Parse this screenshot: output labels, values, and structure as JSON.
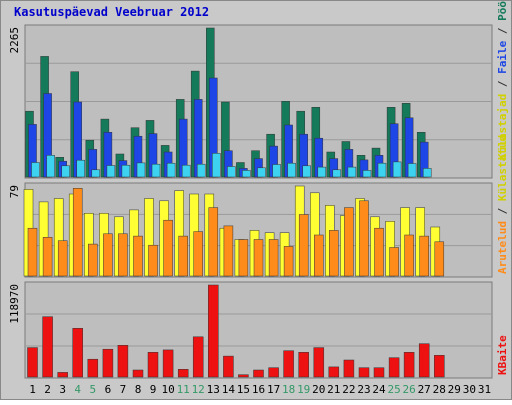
{
  "chart_data": {
    "title": "Kasutuspäevad Veebruar 2012",
    "type": "bar",
    "x": [
      "1",
      "2",
      "3",
      "4",
      "5",
      "6",
      "7",
      "8",
      "9",
      "10",
      "11",
      "12",
      "13",
      "14",
      "15",
      "16",
      "17",
      "18",
      "19",
      "20",
      "21",
      "22",
      "23",
      "24",
      "25",
      "26",
      "27",
      "28",
      "29",
      "30",
      "31"
    ],
    "weekend_days": [
      "4",
      "5",
      "11",
      "12",
      "18",
      "19",
      "25",
      "26"
    ],
    "colors": {
      "title": "#0000cc",
      "weekend_label": "#339966",
      "weekday_label": "#000000",
      "panel_bg": "#bebebe",
      "frame_bg": "#c9c9c9",
      "pageviews": "#147a5a",
      "files": "#1e46e6",
      "visits": "#3cd2f0",
      "visitors": "#ffff33",
      "hits": "#ff8c1a",
      "kbytes": "#ee1111"
    },
    "panels": [
      {
        "max_label": "2265",
        "ymax": 2265,
        "legend": [
          {
            "text": "Külastajad",
            "color": "#d0d000"
          },
          {
            "text": " / ",
            "color": "#333333"
          },
          {
            "text": "Faile",
            "color": "#1e46e6"
          },
          {
            "text": " / ",
            "color": "#333333"
          },
          {
            "text": "Pöördumisi",
            "color": "#147a5a"
          }
        ],
        "series": [
          {
            "name": "Pöördumisi",
            "color": "#147a5a",
            "values": [
              1000,
              1833,
              300,
              1600,
              560,
              880,
              350,
              750,
              860,
              480,
              1180,
              1610,
              2265,
              1140,
              220,
              400,
              650,
              1150,
              1000,
              1060,
              380,
              540,
              330,
              440,
              1060,
              1120,
              680,
              0,
              0,
              0,
              0
            ]
          },
          {
            "name": "Faile",
            "color": "#1e46e6",
            "values": [
              800,
              1270,
              240,
              1140,
              420,
              680,
              250,
              620,
              660,
              380,
              880,
              1180,
              1505,
              400,
              130,
              280,
              470,
              790,
              650,
              590,
              280,
              420,
              260,
              330,
              810,
              900,
              530,
              0,
              0,
              0,
              0
            ]
          },
          {
            "name": "Külastajad",
            "color": "#3cd2f0",
            "values": [
              220,
              330,
              170,
              255,
              110,
              175,
              180,
              215,
              195,
              210,
              180,
              195,
              360,
              160,
              100,
              140,
              190,
              210,
              170,
              150,
              110,
              150,
              100,
              210,
              230,
              205,
              130,
              0,
              0,
              0,
              0
            ]
          }
        ]
      },
      {
        "max_label": "79",
        "ymax": 79,
        "legend": [
          {
            "text": "Arutelud",
            "color": "#ff8c1a"
          },
          {
            "text": " / ",
            "color": "#333333"
          },
          {
            "text": "Külastatud",
            "color": "#d0d000"
          }
        ],
        "series": [
          {
            "name": "Külastajad",
            "color": "#ffff33",
            "values": [
              76,
              65,
              68,
              72,
              55,
              55,
              52,
              58,
              68,
              66,
              75,
              72,
              72,
              42,
              32,
              40,
              38,
              38,
              79,
              73,
              62,
              53,
              68,
              52,
              48,
              60,
              60,
              43,
              0,
              0,
              0
            ]
          },
          {
            "name": "Arutelud",
            "color": "#ff8c1a",
            "values": [
              42,
              34,
              31,
              77,
              28,
              37,
              37,
              35,
              27,
              49,
              35,
              39,
              60,
              44,
              32,
              32,
              32,
              26,
              54,
              36,
              40,
              60,
              66,
              42,
              25,
              36,
              35,
              30,
              0,
              0,
              0
            ]
          }
        ]
      },
      {
        "max_label": "118970",
        "ymax": 118970,
        "legend": [
          {
            "text": "KBaite",
            "color": "#ee1111"
          }
        ],
        "series": [
          {
            "name": "KBaite",
            "color": "#ee1111",
            "values": [
              38000,
              78000,
              6000,
              63000,
              23000,
              36000,
              41000,
              9000,
              32000,
              35000,
              10000,
              52000,
              118970,
              27000,
              3000,
              9000,
              12000,
              34000,
              32000,
              38000,
              13000,
              22000,
              12000,
              12000,
              25000,
              32000,
              43000,
              28000,
              0,
              0,
              0
            ]
          }
        ]
      }
    ]
  }
}
